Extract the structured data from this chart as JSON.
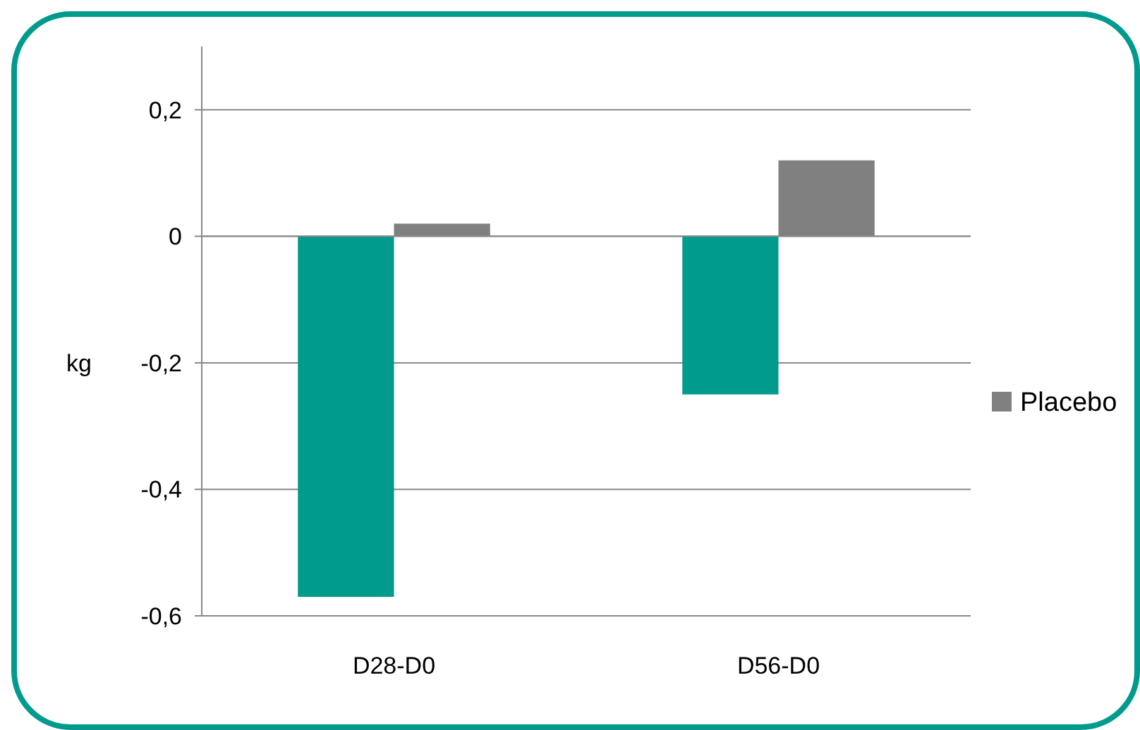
{
  "chart_data": {
    "type": "bar",
    "categories": [
      "D28-D0",
      "D56-D0"
    ],
    "ylabel": "kg",
    "series": [
      {
        "color": "#009b8d",
        "values": [
          -0.57,
          -0.25
        ]
      },
      {
        "name": "Placebo",
        "color": "#808080",
        "values": [
          0.02,
          0.12
        ]
      }
    ],
    "ylim": [
      -0.6,
      0.3
    ],
    "yticks": [
      {
        "value": -0.6,
        "label": "-0,6"
      },
      {
        "value": -0.4,
        "label": "-0,4"
      },
      {
        "value": -0.2,
        "label": "-0,2"
      },
      {
        "value": 0,
        "label": "0"
      },
      {
        "value": 0.2,
        "label": "0,2"
      }
    ],
    "grid": "y",
    "legend": "right"
  }
}
